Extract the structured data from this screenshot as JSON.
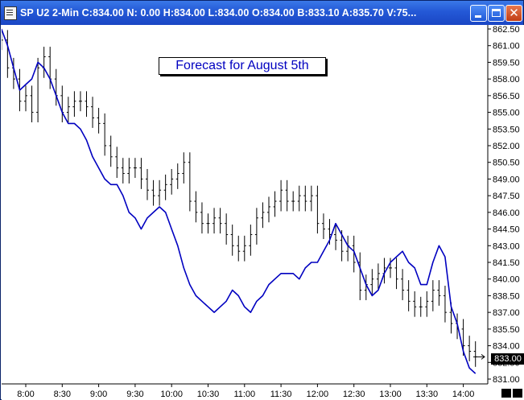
{
  "window": {
    "title": "SP U2 2-Min C:834.00 N: 0.00 H:834.00 L:834.00 O:834.00 B:833.10 A:835.70 V:75...",
    "buttons": {
      "minimize": "minimize",
      "maximize": "maximize",
      "close": "✕"
    }
  },
  "annotation": "Forecast for August 5th",
  "last_price_label": "833.00",
  "colors": {
    "price": "#000000",
    "forecast": "#0000c0",
    "title_bar": "#2458d6"
  },
  "chart_data": {
    "type": "line",
    "xlabel": "",
    "ylabel": "",
    "x_ticks": [
      "8:00",
      "8:30",
      "9:00",
      "9:30",
      "10:00",
      "10:30",
      "11:00",
      "11:30",
      "12:00",
      "12:30",
      "13:00",
      "13:30",
      "14:00"
    ],
    "y_ticks": [
      "862.50",
      "861.00",
      "859.50",
      "858.00",
      "856.50",
      "855.00",
      "853.50",
      "852.00",
      "850.50",
      "849.00",
      "847.50",
      "846.00",
      "844.50",
      "843.00",
      "841.50",
      "840.00",
      "838.50",
      "837.00",
      "835.50",
      "834.00",
      "832.50",
      "831.00"
    ],
    "ylim": [
      831.0,
      862.5
    ],
    "grid": false,
    "series": [
      {
        "values_kind": "ohlc_bars",
        "x": [
          "7:40",
          "7:45",
          "7:50",
          "7:55",
          "8:00",
          "8:05",
          "8:10",
          "8:15",
          "8:20",
          "8:25",
          "8:30",
          "8:35",
          "8:40",
          "8:45",
          "8:50",
          "8:55",
          "9:00",
          "9:05",
          "9:10",
          "9:15",
          "9:20",
          "9:25",
          "9:30",
          "9:35",
          "9:40",
          "9:45",
          "9:50",
          "9:55",
          "10:00",
          "10:05",
          "10:10",
          "10:15",
          "10:20",
          "10:25",
          "10:30",
          "10:35",
          "10:40",
          "10:45",
          "10:50",
          "10:55",
          "11:00",
          "11:05",
          "11:10",
          "11:15",
          "11:20",
          "11:25",
          "11:30",
          "11:35",
          "11:40",
          "11:45",
          "11:50",
          "11:55",
          "12:00",
          "12:05",
          "12:10",
          "12:15",
          "12:20",
          "12:25",
          "12:30",
          "12:35",
          "12:40",
          "12:45",
          "12:50",
          "12:55",
          "13:00",
          "13:05",
          "13:10",
          "13:15",
          "13:20",
          "13:25",
          "13:30",
          "13:35",
          "13:40",
          "13:45",
          "13:50",
          "13:55",
          "14:00",
          "14:05",
          "14:10"
        ],
        "values": [
          861.5,
          859.0,
          858.0,
          856.0,
          856.5,
          855.0,
          859.0,
          860.0,
          858.0,
          856.5,
          855.0,
          855.5,
          856.0,
          856.0,
          855.5,
          854.5,
          854.0,
          852.0,
          851.0,
          850.0,
          849.5,
          850.0,
          850.0,
          849.0,
          848.0,
          847.5,
          848.0,
          848.5,
          849.0,
          849.5,
          850.5,
          847.0,
          846.0,
          845.0,
          845.0,
          845.5,
          845.0,
          844.0,
          843.0,
          842.5,
          843.0,
          844.0,
          845.5,
          846.0,
          846.5,
          847.0,
          848.0,
          847.0,
          847.0,
          847.5,
          847.0,
          847.5,
          845.0,
          844.5,
          844.0,
          843.5,
          842.5,
          843.0,
          841.5,
          839.0,
          839.5,
          840.0,
          840.5,
          841.0,
          841.0,
          840.0,
          839.0,
          838.0,
          837.5,
          837.5,
          838.0,
          839.0,
          838.5,
          837.0,
          836.0,
          835.5,
          834.0,
          833.5,
          833.0
        ]
      },
      {
        "values_kind": "forecast_line",
        "x": [
          "7:40",
          "7:45",
          "7:50",
          "7:55",
          "8:00",
          "8:05",
          "8:10",
          "8:15",
          "8:20",
          "8:25",
          "8:30",
          "8:35",
          "8:40",
          "8:45",
          "8:50",
          "8:55",
          "9:00",
          "9:05",
          "9:10",
          "9:15",
          "9:20",
          "9:25",
          "9:30",
          "9:35",
          "9:40",
          "9:45",
          "9:50",
          "9:55",
          "10:00",
          "10:05",
          "10:10",
          "10:15",
          "10:20",
          "10:25",
          "10:30",
          "10:35",
          "10:40",
          "10:45",
          "10:50",
          "10:55",
          "11:00",
          "11:05",
          "11:10",
          "11:15",
          "11:20",
          "11:25",
          "11:30",
          "11:35",
          "11:40",
          "11:45",
          "11:50",
          "11:55",
          "12:00",
          "12:05",
          "12:10",
          "12:15",
          "12:20",
          "12:25",
          "12:30",
          "12:35",
          "12:40",
          "12:45",
          "12:50",
          "12:55",
          "13:00",
          "13:05",
          "13:10",
          "13:15",
          "13:20",
          "13:25",
          "13:30",
          "13:35",
          "13:40",
          "13:45",
          "13:50",
          "13:55",
          "14:00",
          "14:05",
          "14:10"
        ],
        "values": [
          862.5,
          861.0,
          859.0,
          857.0,
          857.5,
          858.0,
          859.5,
          859.0,
          858.0,
          856.5,
          855.0,
          854.0,
          854.0,
          853.5,
          852.5,
          851.0,
          850.0,
          849.0,
          848.5,
          848.5,
          847.5,
          846.0,
          845.5,
          844.5,
          845.5,
          846.0,
          846.5,
          846.0,
          844.5,
          843.0,
          841.0,
          839.5,
          838.5,
          838.0,
          837.5,
          837.0,
          837.5,
          838.0,
          839.0,
          838.5,
          837.5,
          837.0,
          838.0,
          838.5,
          839.5,
          840.0,
          840.5,
          840.5,
          840.5,
          840.0,
          841.0,
          841.5,
          841.5,
          842.5,
          843.5,
          845.0,
          844.0,
          843.0,
          842.5,
          841.0,
          839.5,
          838.5,
          839.0,
          840.5,
          841.5,
          842.0,
          842.5,
          841.5,
          841.0,
          839.5,
          839.5,
          841.5,
          843.0,
          842.0,
          837.5,
          836.0,
          833.5,
          832.0,
          831.5
        ]
      }
    ]
  }
}
